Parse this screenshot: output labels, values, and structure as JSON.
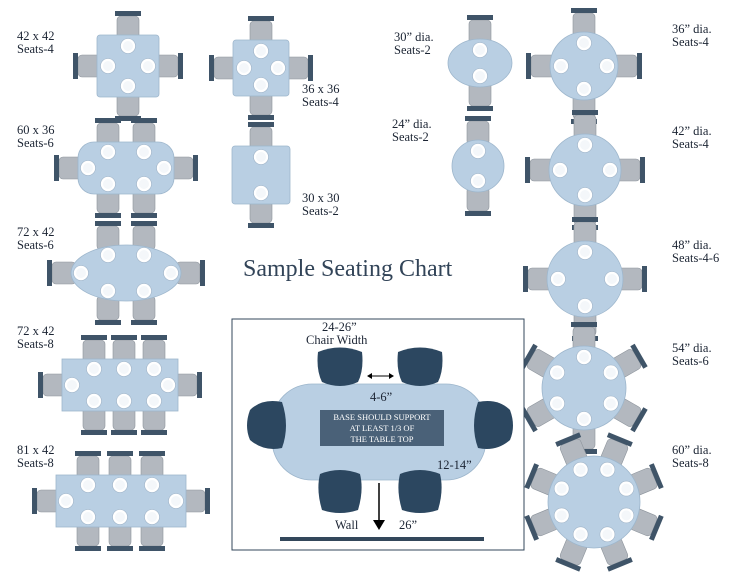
{
  "title": "Sample Seating Chart",
  "colors": {
    "table": "#b9cfe3",
    "chair_back": "#3f5468",
    "chair_seat": "#b3b8bf",
    "plate": "#ffffff",
    "diagram_chair": "#2c4760",
    "wall": "#33475b"
  },
  "tables": [
    {
      "size": "42 x 42",
      "seats": "Seats-4"
    },
    {
      "size": "36 x 36",
      "seats": "Seats-4"
    },
    {
      "size": "60 x 36",
      "seats": "Seats-6"
    },
    {
      "size": "30 x 30",
      "seats": "Seats-2"
    },
    {
      "size": "72 x 42",
      "seats": "Seats-6"
    },
    {
      "size": "72 x 42",
      "seats": "Seats-8"
    },
    {
      "size": "81 x 42",
      "seats": "Seats-8"
    },
    {
      "size": "30” dia.",
      "seats": "Seats-2"
    },
    {
      "size": "24” dia.",
      "seats": "Seats-2"
    },
    {
      "size": "36” dia.",
      "seats": "Seats-4"
    },
    {
      "size": "42” dia.",
      "seats": "Seats-4"
    },
    {
      "size": "48” dia.",
      "seats": "Seats-4-6"
    },
    {
      "size": "54” dia.",
      "seats": "Seats-6"
    },
    {
      "size": "60” dia.",
      "seats": "Seats-8"
    }
  ],
  "diagram": {
    "chair_width_value": "24-26”",
    "chair_width_label": "Chair Width",
    "chair_gap": "4-6”",
    "base_note": [
      "BASE SHOULD SUPPORT",
      "AT LEAST 1/3 OF",
      "THE TABLE TOP"
    ],
    "table_edge": "12-14”",
    "wall_label": "Wall",
    "wall_distance": "26”"
  }
}
